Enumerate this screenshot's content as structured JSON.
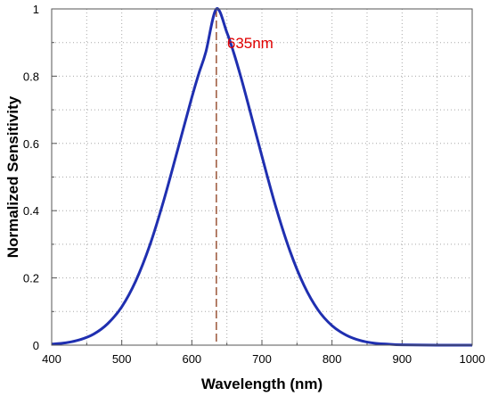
{
  "chart_data": {
    "type": "line",
    "xlabel": "Wavelength (nm)",
    "ylabel": "Normalized Sensitivity",
    "xlim": [
      400,
      1000
    ],
    "ylim": [
      0,
      1
    ],
    "xticks": [
      400,
      500,
      600,
      700,
      800,
      900,
      1000
    ],
    "yticks": [
      0,
      0.2,
      0.4,
      0.6,
      0.8,
      1
    ],
    "grid": true,
    "series": [
      {
        "color": "#1f2fb0",
        "x": [
          400,
          420,
          440,
          460,
          480,
          500,
          520,
          540,
          560,
          580,
          600,
          610,
          620,
          635,
          650,
          660,
          670,
          680,
          700,
          720,
          740,
          760,
          780,
          800,
          820,
          840,
          860,
          880,
          900,
          950,
          1000
        ],
        "y": [
          0.003,
          0.007,
          0.016,
          0.033,
          0.064,
          0.114,
          0.191,
          0.297,
          0.431,
          0.583,
          0.737,
          0.808,
          0.872,
          1.0,
          0.93,
          0.868,
          0.797,
          0.72,
          0.562,
          0.41,
          0.28,
          0.178,
          0.105,
          0.058,
          0.03,
          0.014,
          0.006,
          0.003,
          0.001,
          0.0,
          0.0
        ]
      }
    ],
    "annotation": {
      "x": 635,
      "label": "635nm",
      "color": "#e00000",
      "line_color": "#8b3a1a"
    }
  }
}
